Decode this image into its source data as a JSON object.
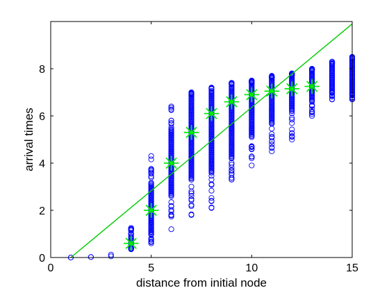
{
  "chart_data": {
    "type": "scatter",
    "title": "",
    "xlabel": "distance from initial node",
    "ylabel": "arrival times",
    "xlim": [
      0,
      15
    ],
    "ylim": [
      0,
      10
    ],
    "xticks": [
      0,
      5,
      10,
      15
    ],
    "yticks": [
      0,
      2,
      4,
      6,
      8
    ],
    "grid": false,
    "legend": "none",
    "colors": {
      "scatter": "#0000ff",
      "mean_marker": "#00ee00",
      "fit_line": "#00cc00",
      "axes": "#000000"
    },
    "scatter_columns": [
      {
        "x": 1,
        "ymin": 0.0,
        "ymax": 0.0,
        "core": []
      },
      {
        "x": 2,
        "ymin": 0.02,
        "ymax": 0.02,
        "core": []
      },
      {
        "x": 3,
        "ymin": 0.05,
        "ymax": 0.12,
        "core": []
      },
      {
        "x": 4,
        "ymin": 0.35,
        "ymax": 1.25,
        "core": [
          0.4,
          0.9
        ]
      },
      {
        "x": 5,
        "ymin": 0.6,
        "ymax": 4.3,
        "core": [
          1.1,
          3.2
        ]
      },
      {
        "x": 6,
        "ymin": 1.2,
        "ymax": 6.4,
        "core": [
          2.6,
          5.4
        ]
      },
      {
        "x": 7,
        "ymin": 1.8,
        "ymax": 7.0,
        "core": [
          3.3,
          6.9
        ]
      },
      {
        "x": 8,
        "ymin": 2.1,
        "ymax": 7.2,
        "core": [
          3.6,
          7.1
        ]
      },
      {
        "x": 9,
        "ymin": 3.3,
        "ymax": 7.4,
        "core": [
          4.2,
          7.3
        ]
      },
      {
        "x": 10,
        "ymin": 3.9,
        "ymax": 7.5,
        "core": [
          5.1,
          7.4
        ]
      },
      {
        "x": 11,
        "ymin": 4.5,
        "ymax": 7.7,
        "core": [
          5.7,
          7.6
        ]
      },
      {
        "x": 12,
        "ymin": 5.0,
        "ymax": 7.8,
        "core": [
          6.2,
          7.7
        ]
      },
      {
        "x": 13,
        "ymin": 6.0,
        "ymax": 8.0,
        "core": [
          6.6,
          7.9
        ]
      },
      {
        "x": 14,
        "ymin": 6.7,
        "ymax": 8.3,
        "core": [
          7.0,
          8.2
        ]
      },
      {
        "x": 15,
        "ymin": 6.7,
        "ymax": 8.5,
        "core": [
          7.0,
          8.4
        ]
      }
    ],
    "mean_markers": {
      "x": [
        4,
        5,
        6,
        7,
        8,
        9,
        10,
        11,
        12,
        13
      ],
      "y": [
        0.6,
        2.0,
        4.0,
        5.3,
        6.1,
        6.6,
        6.9,
        7.05,
        7.15,
        7.25
      ]
    },
    "fit_line": {
      "x": [
        1,
        15
      ],
      "y": [
        0.0,
        9.9
      ]
    }
  }
}
